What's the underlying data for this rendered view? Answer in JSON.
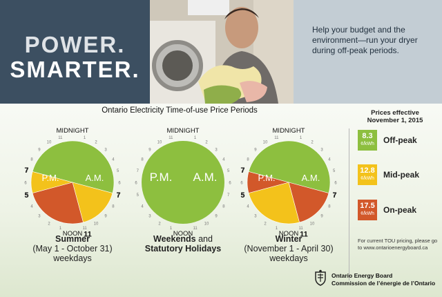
{
  "brand": {
    "line1": "POWER.",
    "line2": "SMARTER."
  },
  "blurb": "Help your budget and the environment—run your dryer during off-peak periods.",
  "chart_title": "Ontario Electricity Time-of-use Price Periods",
  "clock_labels": {
    "midnight": "MIDNIGHT",
    "noon": "NOON",
    "pm": "P.M.",
    "am": "A.M."
  },
  "hour_ticks": [
    "1",
    "2",
    "3",
    "4",
    "5",
    "6",
    "7",
    "8",
    "9",
    "10",
    "11",
    "12"
  ],
  "clocks": [
    {
      "id": "summer",
      "segments": [
        {
          "from": 19,
          "to": 31,
          "rate": "off-peak"
        },
        {
          "from": 7,
          "to": 11,
          "rate": "mid-peak"
        },
        {
          "from": 11,
          "to": 17,
          "rate": "on-peak"
        },
        {
          "from": 17,
          "to": 19,
          "rate": "mid-peak"
        }
      ],
      "boundary_labels": [
        {
          "text": "7",
          "at": 7
        },
        {
          "text": "11",
          "at": 11
        },
        {
          "text": "5",
          "at": 17
        },
        {
          "text": "7",
          "at": 19
        }
      ],
      "caption": {
        "bold": "Summer",
        "line2": "(May 1 - October 31)",
        "line3": "weekdays"
      }
    },
    {
      "id": "weekend",
      "segments": [
        {
          "from": 0,
          "to": 24,
          "rate": "off-peak"
        }
      ],
      "boundary_labels": [],
      "caption": {
        "bold": "Weekends",
        "and": " and",
        "line2b": "Statutory Holidays",
        "line3": ""
      }
    },
    {
      "id": "winter",
      "segments": [
        {
          "from": 19,
          "to": 31,
          "rate": "off-peak"
        },
        {
          "from": 7,
          "to": 11,
          "rate": "on-peak"
        },
        {
          "from": 11,
          "to": 17,
          "rate": "mid-peak"
        },
        {
          "from": 17,
          "to": 19,
          "rate": "on-peak"
        }
      ],
      "boundary_labels": [
        {
          "text": "7",
          "at": 7
        },
        {
          "text": "11",
          "at": 11
        },
        {
          "text": "5",
          "at": 17
        },
        {
          "text": "7",
          "at": 19
        }
      ],
      "caption": {
        "bold": "Winter",
        "line2": "(November 1 - April 30)",
        "line3": "weekdays"
      }
    }
  ],
  "legend": {
    "title_line1": "Prices effective",
    "title_line2": "November 1, 2015",
    "items": [
      {
        "value": "8.3",
        "unit": "¢/kWh",
        "name": "Off-peak",
        "color": "#8dbf3f"
      },
      {
        "value": "12.8",
        "unit": "¢/kWh",
        "name": "Mid-peak",
        "color": "#f3c21b"
      },
      {
        "value": "17.5",
        "unit": "¢/kWh",
        "name": "On-peak",
        "color": "#d2582a"
      }
    ]
  },
  "note": "For current TOU pricing, please go to www.ontarioenergyboard.ca",
  "oeb": {
    "name_en": "Ontario Energy Board",
    "name_fr": "Commission de l’énergie de l’Ontario"
  },
  "colors": {
    "off-peak": "#8dbf3f",
    "mid-peak": "#f3c21b",
    "on-peak": "#d2582a"
  }
}
